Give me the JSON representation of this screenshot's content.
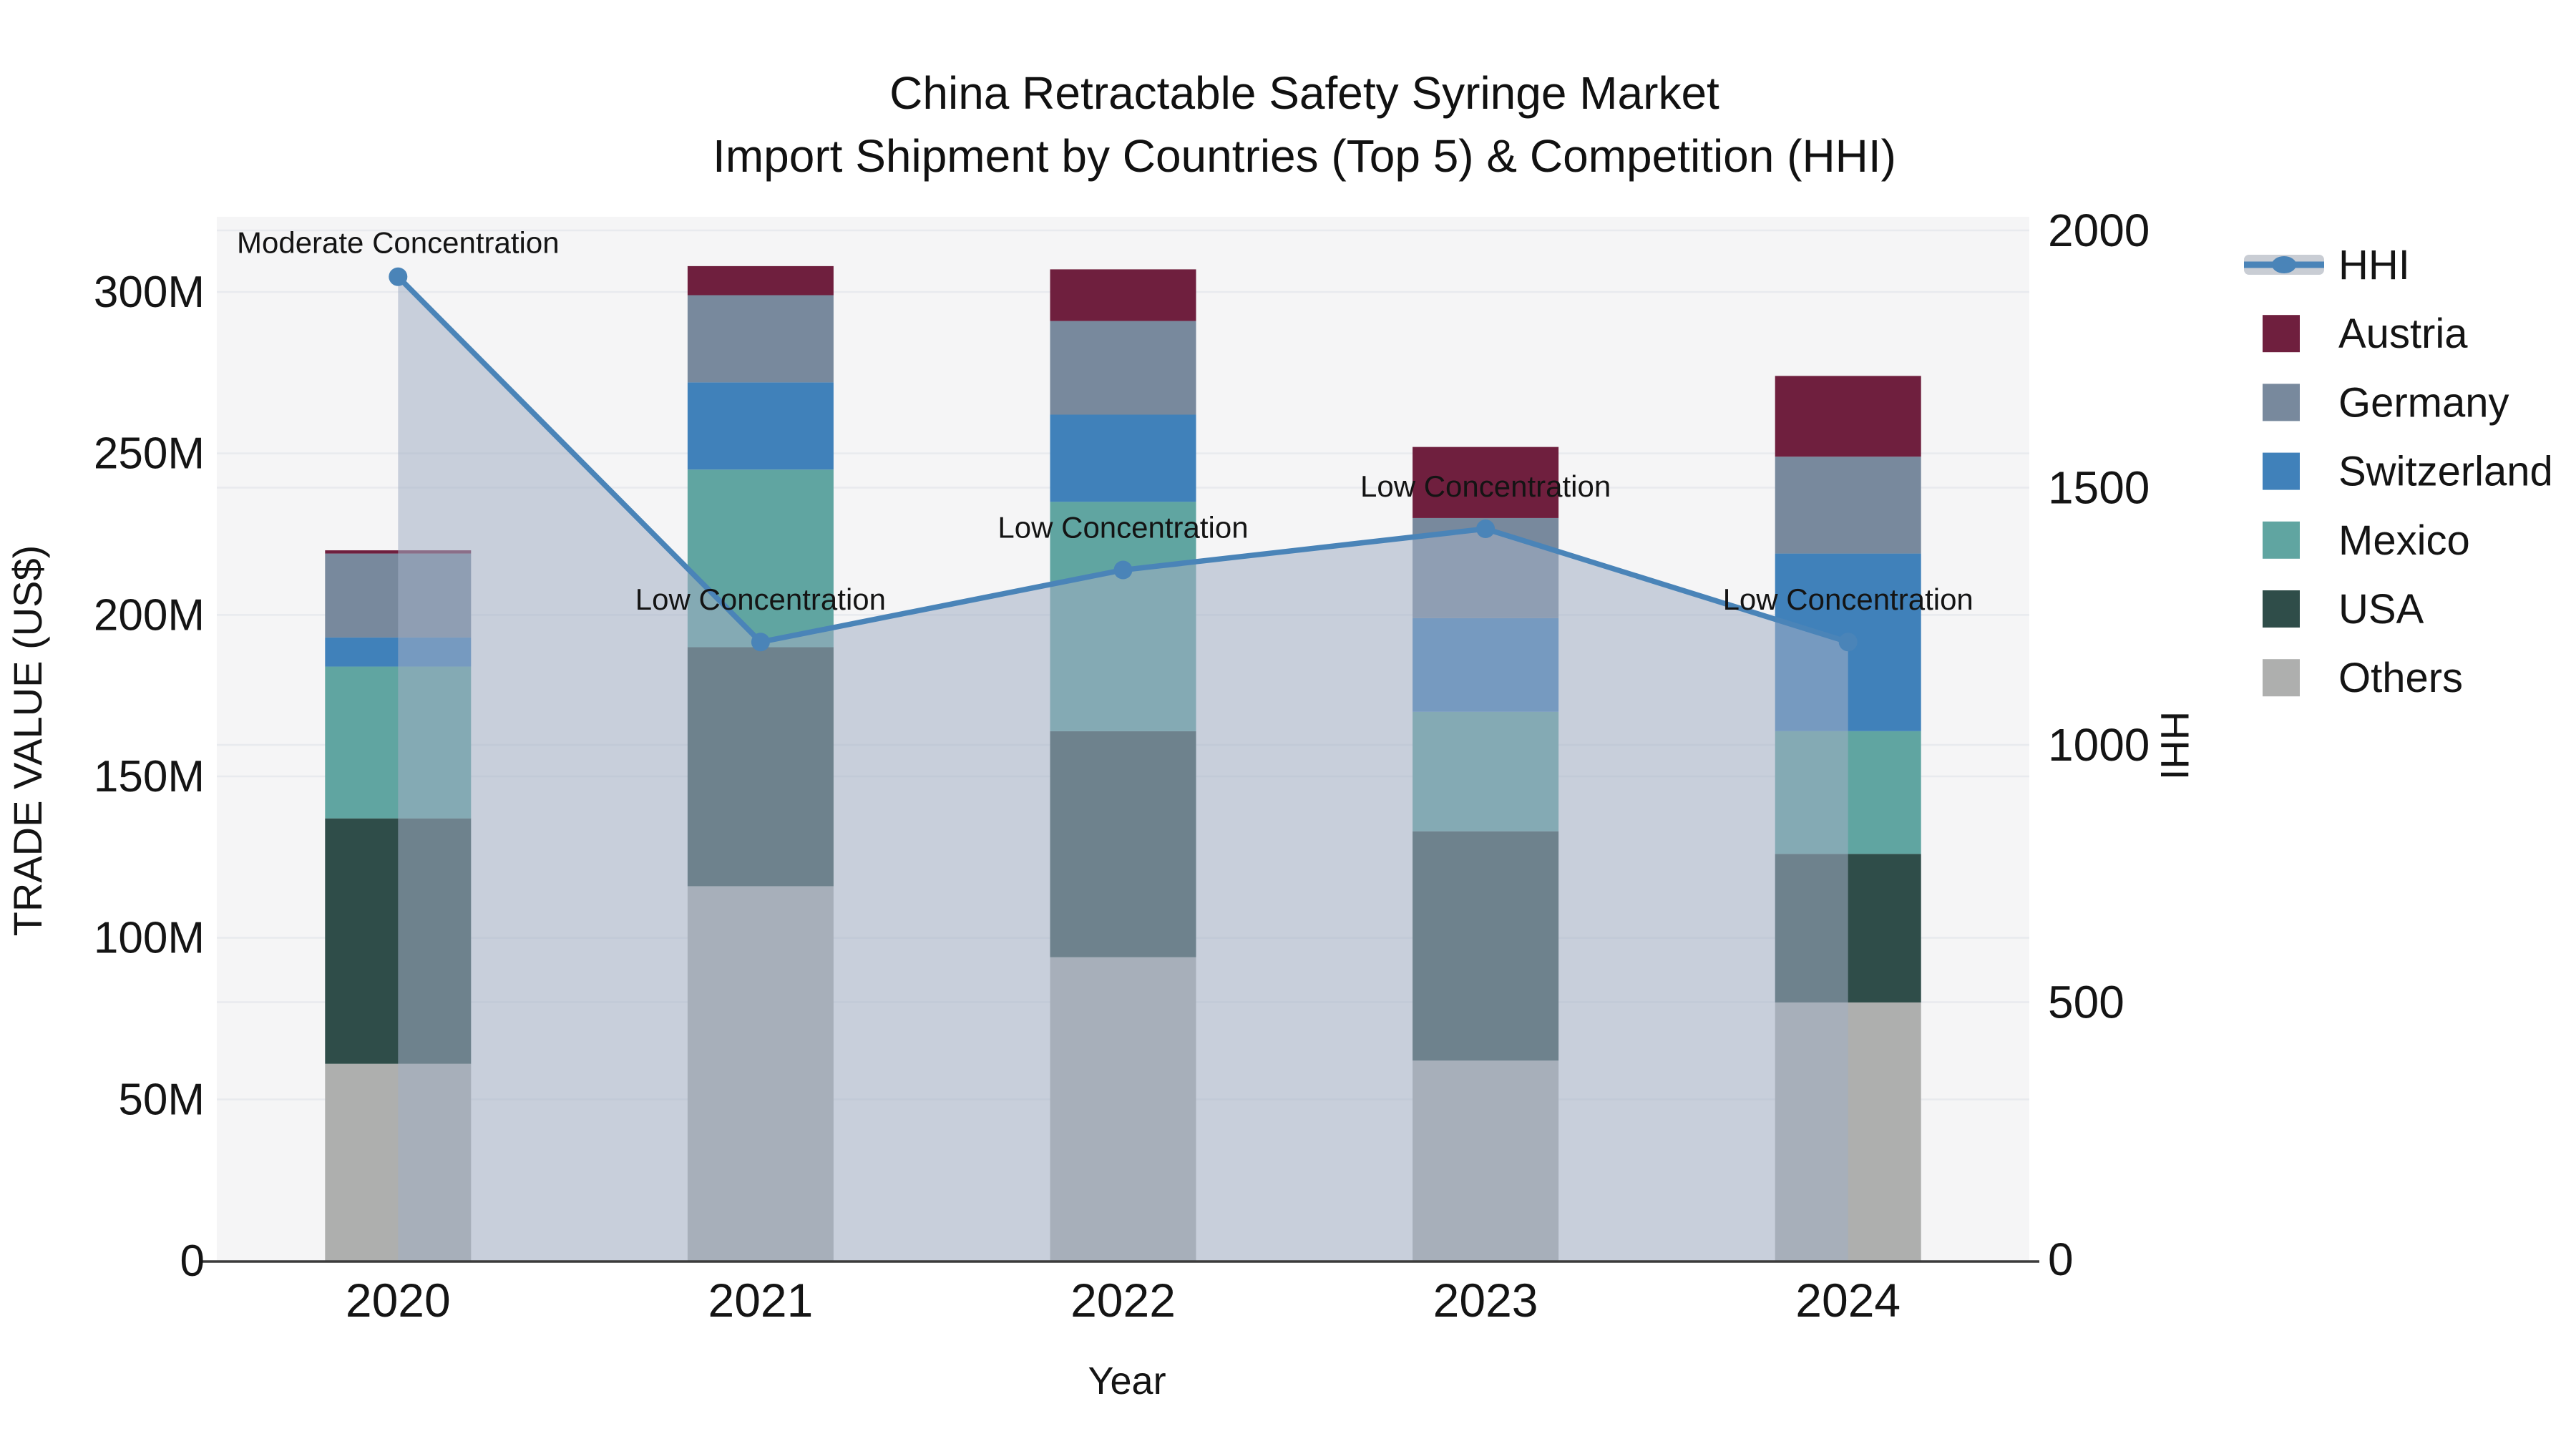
{
  "title": {
    "line1": "China Retractable Safety Syringe Market",
    "line2": "Import Shipment by Countries (Top 5) & Competition (HHI)"
  },
  "axes": {
    "x": {
      "title": "Year",
      "labels": [
        "2020",
        "2021",
        "2022",
        "2023",
        "2024"
      ]
    },
    "y_left": {
      "title": "TRADE VALUE (US$)",
      "tick_labels": [
        "0",
        "50M",
        "100M",
        "150M",
        "200M",
        "250M",
        "300M"
      ],
      "tick_values": [
        0,
        50,
        100,
        150,
        200,
        250,
        300
      ],
      "max": 300
    },
    "y_right": {
      "title": "HHI",
      "tick_labels": [
        "0",
        "500",
        "1000",
        "1500",
        "2000"
      ],
      "tick_values": [
        0,
        500,
        1000,
        1500,
        2000
      ],
      "max": 2000
    }
  },
  "legend": {
    "items": [
      {
        "label": "HHI",
        "type": "line",
        "color": "#4A84B8"
      },
      {
        "label": "Austria",
        "type": "square",
        "color": "#6F1F3E"
      },
      {
        "label": "Germany",
        "type": "square",
        "color": "#78899D"
      },
      {
        "label": "Switzerland",
        "type": "square",
        "color": "#4081BA"
      },
      {
        "label": "Mexico",
        "type": "square",
        "color": "#60A5A1"
      },
      {
        "label": "USA",
        "type": "square",
        "color": "#2F4D49"
      },
      {
        "label": "Others",
        "type": "square",
        "color": "#AEAFAE"
      }
    ]
  },
  "chart_data": {
    "type": "combo-stacked-bar-line",
    "categories": [
      "2020",
      "2021",
      "2022",
      "2023",
      "2024"
    ],
    "bar_unit": "US$ millions",
    "bar_series": [
      {
        "name": "Others",
        "color": "#AEAFAE",
        "values": [
          61,
          116,
          94,
          62,
          80
        ]
      },
      {
        "name": "USA",
        "color": "#2F4D49",
        "values": [
          76,
          74,
          70,
          71,
          46
        ]
      },
      {
        "name": "Mexico",
        "color": "#60A5A1",
        "values": [
          47,
          55,
          71,
          37,
          38
        ]
      },
      {
        "name": "Switzerland",
        "color": "#4081BA",
        "values": [
          9,
          27,
          27,
          29,
          55
        ]
      },
      {
        "name": "Germany",
        "color": "#78899D",
        "values": [
          26,
          27,
          29,
          31,
          30
        ]
      },
      {
        "name": "Austria",
        "color": "#6F1F3E",
        "values": [
          1,
          9,
          16,
          22,
          25
        ]
      }
    ],
    "bar_totals": [
      220,
      308,
      307,
      252,
      274
    ],
    "line_series": {
      "name": "HHI",
      "color": "#4A84B8",
      "area_fill": "rgba(163,175,197,0.55)",
      "values": [
        1910,
        1200,
        1340,
        1420,
        1200
      ]
    },
    "annotations": [
      {
        "category": "2020",
        "text": "Moderate Concentration"
      },
      {
        "category": "2021",
        "text": "Low Concentration"
      },
      {
        "category": "2022",
        "text": "Low Concentration"
      },
      {
        "category": "2023",
        "text": "Low Concentration"
      },
      {
        "category": "2024",
        "text": "Low Concentration"
      }
    ],
    "ylim_left": [
      0,
      324
    ],
    "ylim_right": [
      0,
      2030
    ],
    "grid": true,
    "legend_position": "right"
  },
  "colors": {
    "page_bg": "#FFFFFF",
    "plot_bg": "#F5F5F6",
    "grid": "#E8EAEE",
    "axis_line": "#3B3B3B",
    "text": "#141414",
    "area_fill": "rgba(163,175,197,0.55)",
    "line": "#4A84B8"
  }
}
